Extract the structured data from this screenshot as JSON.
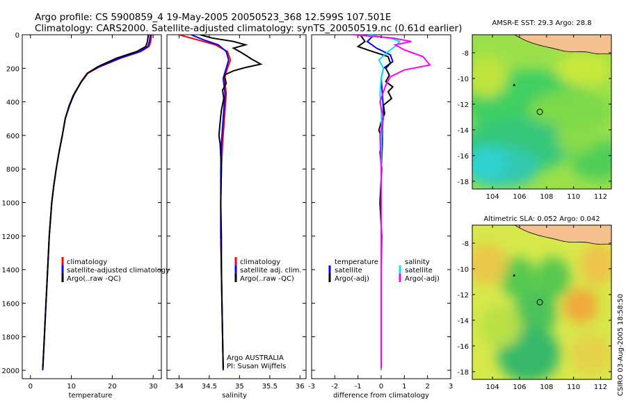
{
  "header": {
    "line1": "Argo profile: CS 5900859_4 19-May-2005 20050523_368 12.599S 107.501E",
    "line2": "Climatology: CARS2000. Satellite-adjusted climatology: synTS_20050519.nc (0.61d earlier)"
  },
  "colors": {
    "climatology": "#ff0000",
    "satellite": "#0000ff",
    "argo": "#000000",
    "cyan": "#00e5ee",
    "magenta": "#ff00ff",
    "land": "#f4c08e"
  },
  "chart_data": [
    {
      "type": "line",
      "name": "temperature",
      "xlabel": "temperature",
      "ylabel": "",
      "xlim": [
        -2,
        32
      ],
      "ylim": [
        2050,
        0
      ],
      "xticks": [
        0,
        10,
        20,
        30
      ],
      "yticks": [
        0,
        200,
        400,
        600,
        800,
        1000,
        1200,
        1400,
        1600,
        1800,
        2000
      ],
      "legend_position": "lower-right",
      "series": [
        {
          "name": "climatology",
          "color": "#ff0000",
          "points": [
            [
              29.6,
              0
            ],
            [
              29.4,
              40
            ],
            [
              29.0,
              70
            ],
            [
              27,
              100
            ],
            [
              22,
              140
            ],
            [
              17,
              190
            ],
            [
              14,
              230
            ],
            [
              12.5,
              280
            ],
            [
              10.5,
              360
            ],
            [
              9.5,
              420
            ],
            [
              8.5,
              500
            ],
            [
              7.8,
              600
            ],
            [
              7.0,
              700
            ],
            [
              6.3,
              800
            ],
            [
              5.7,
              900
            ],
            [
              5.2,
              1000
            ],
            [
              4.6,
              1200
            ],
            [
              4.2,
              1400
            ],
            [
              3.8,
              1600
            ],
            [
              3.4,
              1800
            ],
            [
              3.1,
              1950
            ],
            [
              3.0,
              2000
            ]
          ]
        },
        {
          "name": "satellite-adjusted climatology",
          "color": "#0000ff",
          "points": [
            [
              29.3,
              0
            ],
            [
              29.1,
              40
            ],
            [
              28.7,
              70
            ],
            [
              26.8,
              100
            ],
            [
              21.8,
              140
            ],
            [
              16.8,
              190
            ],
            [
              13.9,
              230
            ],
            [
              12.4,
              280
            ],
            [
              10.5,
              360
            ],
            [
              9.5,
              420
            ],
            [
              8.5,
              500
            ],
            [
              7.8,
              600
            ],
            [
              7.0,
              700
            ],
            [
              6.3,
              800
            ],
            [
              5.7,
              900
            ],
            [
              5.2,
              1000
            ],
            [
              4.6,
              1200
            ],
            [
              4.2,
              1400
            ],
            [
              3.8,
              1600
            ],
            [
              3.4,
              1800
            ],
            [
              3.1,
              1950
            ],
            [
              3.0,
              2000
            ]
          ]
        },
        {
          "name": "Argo(..raw -QC)",
          "color": "#000000",
          "points": [
            [
              28.8,
              0
            ],
            [
              28.6,
              40
            ],
            [
              28.2,
              70
            ],
            [
              26,
              100
            ],
            [
              21,
              140
            ],
            [
              16.5,
              190
            ],
            [
              13.9,
              230
            ],
            [
              12.4,
              280
            ],
            [
              10.6,
              360
            ],
            [
              9.6,
              420
            ],
            [
              8.5,
              500
            ],
            [
              7.8,
              600
            ],
            [
              7.0,
              700
            ],
            [
              6.3,
              800
            ],
            [
              5.7,
              900
            ],
            [
              5.2,
              1000
            ],
            [
              4.6,
              1200
            ],
            [
              4.2,
              1400
            ],
            [
              3.8,
              1600
            ],
            [
              3.4,
              1800
            ],
            [
              3.1,
              1950
            ],
            [
              3.0,
              1990
            ]
          ]
        }
      ],
      "legend": [
        "climatology",
        "satellite-adjusted climatology",
        "Argo(..raw -QC)"
      ]
    },
    {
      "type": "line",
      "name": "salinity",
      "xlabel": "salinity",
      "ylabel": "",
      "xlim": [
        33.8,
        36.1
      ],
      "ylim": [
        2050,
        0
      ],
      "xticks": [
        34,
        34.5,
        35,
        35.5,
        36
      ],
      "yticks": [
        0,
        200,
        400,
        600,
        800,
        1000,
        1200,
        1400,
        1600,
        1800,
        2000
      ],
      "legend_position": "lower-right",
      "series": [
        {
          "name": "climatology",
          "color": "#ff0000",
          "points": [
            [
              34.0,
              0
            ],
            [
              34.3,
              30
            ],
            [
              34.6,
              60
            ],
            [
              34.8,
              100
            ],
            [
              34.85,
              150
            ],
            [
              34.8,
              200
            ],
            [
              34.75,
              260
            ],
            [
              34.78,
              350
            ],
            [
              34.76,
              450
            ],
            [
              34.74,
              550
            ],
            [
              34.72,
              650
            ],
            [
              34.7,
              800
            ],
            [
              34.69,
              1000
            ],
            [
              34.69,
              1200
            ],
            [
              34.7,
              1400
            ],
            [
              34.71,
              1600
            ],
            [
              34.72,
              1800
            ],
            [
              34.73,
              2000
            ]
          ]
        },
        {
          "name": "satellite adj. clim.",
          "color": "#0000ff",
          "points": [
            [
              34.2,
              0
            ],
            [
              34.4,
              30
            ],
            [
              34.65,
              60
            ],
            [
              34.78,
              100
            ],
            [
              34.82,
              150
            ],
            [
              34.78,
              200
            ],
            [
              34.73,
              260
            ],
            [
              34.76,
              350
            ],
            [
              34.74,
              450
            ],
            [
              34.72,
              550
            ],
            [
              34.7,
              650
            ],
            [
              34.69,
              800
            ],
            [
              34.69,
              1000
            ],
            [
              34.69,
              1200
            ],
            [
              34.7,
              1400
            ],
            [
              34.71,
              1600
            ],
            [
              34.72,
              1800
            ],
            [
              34.73,
              2000
            ]
          ]
        },
        {
          "name": "Argo(..raw -QC)",
          "color": "#000000",
          "points": [
            [
              34.35,
              0
            ],
            [
              34.55,
              20
            ],
            [
              34.9,
              40
            ],
            [
              35.1,
              60
            ],
            [
              34.9,
              80
            ],
            [
              35.05,
              110
            ],
            [
              35.2,
              145
            ],
            [
              35.35,
              175
            ],
            [
              35.1,
              195
            ],
            [
              34.9,
              215
            ],
            [
              34.75,
              240
            ],
            [
              34.78,
              290
            ],
            [
              34.72,
              330
            ],
            [
              34.74,
              380
            ],
            [
              34.7,
              450
            ],
            [
              34.68,
              520
            ],
            [
              34.66,
              600
            ],
            [
              34.68,
              650
            ],
            [
              34.7,
              800
            ],
            [
              34.69,
              1000
            ],
            [
              34.7,
              1200
            ],
            [
              34.7,
              1400
            ],
            [
              34.71,
              1600
            ],
            [
              34.72,
              1800
            ],
            [
              34.73,
              1990
            ]
          ]
        }
      ],
      "legend": [
        "climatology",
        "satellite adj. clim.",
        "Argo(..raw -QC)"
      ],
      "annotation": {
        "line1": "Argo AUSTRALIA",
        "line2": "PI: Susan Wijffels"
      }
    },
    {
      "type": "line",
      "name": "difference",
      "xlabel": "difference from climatology",
      "ylabel": "",
      "xlim": [
        -3,
        3
      ],
      "ylim": [
        2050,
        0
      ],
      "xticks": [
        -3,
        -2,
        -1,
        0,
        1,
        2,
        3
      ],
      "yticks": [
        0,
        200,
        400,
        600,
        800,
        1000,
        1200,
        1400,
        1600,
        1800,
        2000
      ],
      "legend_position": "lower-center",
      "series": [
        {
          "name": "temperature satellite",
          "color": "#0000ff",
          "points": [
            [
              -0.3,
              0
            ],
            [
              -0.6,
              40
            ],
            [
              -0.2,
              80
            ],
            [
              0.4,
              120
            ],
            [
              0.5,
              160
            ],
            [
              0.1,
              200
            ],
            [
              0.0,
              260
            ],
            [
              0.05,
              350
            ],
            [
              0.1,
              450
            ],
            [
              0.05,
              550
            ],
            [
              0.05,
              650
            ],
            [
              0.0,
              800
            ],
            [
              0.0,
              1000
            ],
            [
              0.0,
              1200
            ],
            [
              0.0,
              1400
            ],
            [
              0.0,
              1600
            ],
            [
              0.0,
              1800
            ],
            [
              0.0,
              2000
            ]
          ]
        },
        {
          "name": "temperature Argo(-adj)",
          "color": "#000000",
          "points": [
            [
              -0.9,
              0
            ],
            [
              -0.7,
              40
            ],
            [
              -1.0,
              70
            ],
            [
              -0.6,
              90
            ],
            [
              0.3,
              130
            ],
            [
              0.4,
              170
            ],
            [
              0.2,
              200
            ],
            [
              0.35,
              240
            ],
            [
              0.2,
              280
            ],
            [
              0.5,
              310
            ],
            [
              0.3,
              340
            ],
            [
              0.45,
              380
            ],
            [
              0.1,
              420
            ],
            [
              0.15,
              470
            ],
            [
              0.0,
              520
            ],
            [
              -0.1,
              570
            ],
            [
              0.05,
              620
            ],
            [
              -0.05,
              700
            ],
            [
              0.02,
              800
            ],
            [
              -0.05,
              1000
            ],
            [
              0.02,
              1200
            ],
            [
              0.0,
              1400
            ],
            [
              0.0,
              1600
            ],
            [
              0.0,
              1800
            ],
            [
              0.0,
              1990
            ]
          ]
        },
        {
          "name": "salinity satellite",
          "color": "#00e5ee",
          "points": [
            [
              -0.6,
              0
            ],
            [
              0.4,
              20
            ],
            [
              0.8,
              40
            ],
            [
              0.6,
              70
            ],
            [
              0.3,
              100
            ],
            [
              -0.1,
              150
            ],
            [
              0.1,
              200
            ],
            [
              0.0,
              260
            ],
            [
              -0.05,
              350
            ],
            [
              0.0,
              450
            ],
            [
              0.02,
              550
            ],
            [
              0.0,
              700
            ],
            [
              0.0,
              1000
            ],
            [
              0.0,
              1200
            ],
            [
              0.0,
              1400
            ],
            [
              0.0,
              1600
            ],
            [
              0.0,
              1800
            ],
            [
              0.0,
              2000
            ]
          ]
        },
        {
          "name": "salinity Argo(-adj)",
          "color": "#ff00ff",
          "points": [
            [
              -1.2,
              0
            ],
            [
              0.5,
              20
            ],
            [
              1.3,
              40
            ],
            [
              0.6,
              60
            ],
            [
              1.0,
              90
            ],
            [
              1.8,
              130
            ],
            [
              2.1,
              180
            ],
            [
              1.0,
              210
            ],
            [
              0.4,
              250
            ],
            [
              0.2,
              300
            ],
            [
              -0.05,
              400
            ],
            [
              0.1,
              500
            ],
            [
              -0.05,
              600
            ],
            [
              0.0,
              800
            ],
            [
              0.0,
              1000
            ],
            [
              0.0,
              1200
            ],
            [
              0.0,
              1400
            ],
            [
              0.0,
              1600
            ],
            [
              0.0,
              1800
            ],
            [
              0.0,
              1990
            ]
          ]
        }
      ],
      "legend": {
        "left_title": "temperature",
        "right_title": "salinity",
        "satellite": "satellite",
        "argo": "Argo(-adj)"
      }
    },
    {
      "type": "heatmap",
      "name": "sst-map",
      "title": "AMSR-E SST: 29.3 Argo: 28.8",
      "xlim": [
        102.5,
        112.8
      ],
      "ylim": [
        -18.6,
        -6.6
      ],
      "xticks": [
        104,
        106,
        108,
        110,
        112
      ],
      "yticks": [
        -8,
        -10,
        -12,
        -14,
        -16,
        -18
      ],
      "profile_location": [
        107.5,
        -12.6
      ],
      "marker": [
        105.6,
        -10.5
      ]
    },
    {
      "type": "heatmap",
      "name": "sla-map",
      "title": "Altimetric SLA: 0.052 Argo: 0.042",
      "xlim": [
        102.5,
        112.8
      ],
      "ylim": [
        -18.6,
        -6.6
      ],
      "xticks": [
        104,
        106,
        108,
        110,
        112
      ],
      "yticks": [
        -8,
        -10,
        -12,
        -14,
        -16,
        -18
      ],
      "profile_location": [
        107.5,
        -12.6
      ],
      "marker": [
        105.6,
        -10.5
      ]
    }
  ],
  "footer": {
    "stamp": "CSIRO 03-Aug-2005 18:58:50"
  }
}
